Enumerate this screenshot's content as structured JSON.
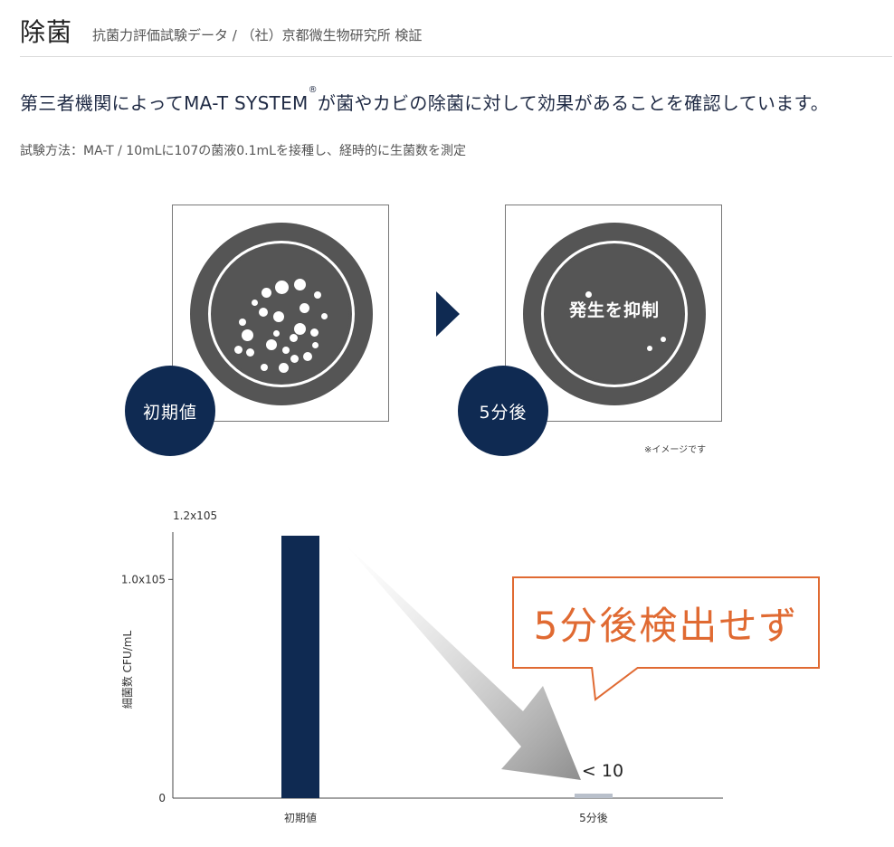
{
  "header": {
    "title": "除菌",
    "subtitle": "抗菌力評価試験データ / （社）京都微生物研究所 検証"
  },
  "lead": {
    "before": "第三者機関によってMA-T SYSTEM",
    "mark": "®",
    "after": "が菌やカビの除菌に対して効果があることを確認しています。"
  },
  "method": "試験方法：MA-T / 10mLに107の菌液0.1mLを接種し、経時的に生菌数を測定",
  "illustration": {
    "initial_badge": "初期値",
    "after_badge": "5分後",
    "inhibit_label": "発生を抑制",
    "note": "※イメージです",
    "colors": {
      "navy": "#0f2a52",
      "dish": "#555555"
    }
  },
  "callout": "5分後検出せず",
  "chart_data": {
    "type": "bar",
    "categories": [
      "初期値",
      "5分後"
    ],
    "values": [
      120000,
      0
    ],
    "bar_labels": [
      "",
      "< 10"
    ],
    "ylabel": "細菌数 CFU/mL",
    "ylim": [
      0,
      120000
    ],
    "yticks": [
      {
        "value": 0,
        "label": "0"
      },
      {
        "value": 100000,
        "label": "1.0x105"
      },
      {
        "value": 120000,
        "label": "1.2x105"
      }
    ],
    "colors": [
      "#0f2a52",
      "#b9c0cb"
    ],
    "grid": false
  }
}
